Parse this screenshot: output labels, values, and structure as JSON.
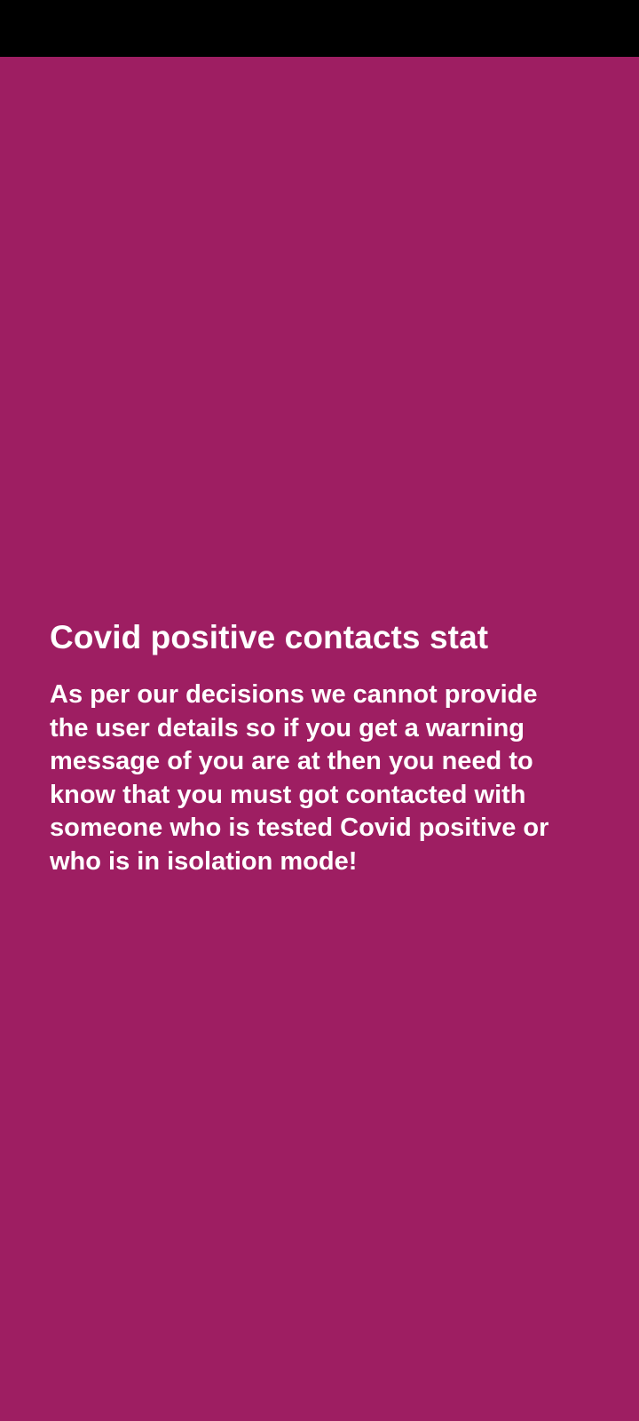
{
  "colors": {
    "status_bar": "#000000",
    "background": "#9E1E62",
    "text": "#FFFFFF"
  },
  "info": {
    "title": "Covid positive contacts stat",
    "message": "As per our decisions we cannot provide the user details so if you get a warning message of you are at then you need to know that you must got contacted with someone who is tested Covid positive or who is in isolation mode!"
  }
}
